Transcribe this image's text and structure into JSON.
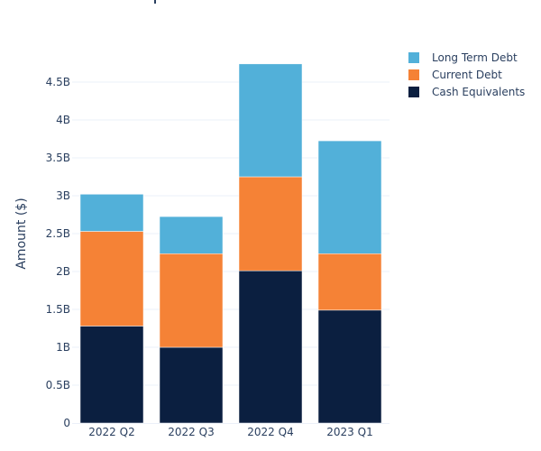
{
  "chart_data": {
    "type": "bar",
    "stacked": true,
    "title": "",
    "xlabel": "",
    "ylabel": "Amount ($)",
    "categories": [
      "2022 Q2",
      "2022 Q3",
      "2022 Q4",
      "2023 Q1"
    ],
    "ylim": [
      0,
      4.75
    ],
    "yticks": [
      0,
      0.5,
      1,
      1.5,
      2,
      2.5,
      3,
      3.5,
      4,
      4.5
    ],
    "ytick_labels": [
      "0",
      "0.5B",
      "1B",
      "1.5B",
      "2B",
      "2.5B",
      "3B",
      "3.5B",
      "4B",
      "4.5B"
    ],
    "units": "billions USD",
    "grid": true,
    "legend_position": "top-right",
    "series": [
      {
        "name": "Cash Equivalents",
        "color": "#0b1f40",
        "values": [
          1.28,
          1.0,
          2.01,
          1.49
        ]
      },
      {
        "name": "Current Debt",
        "color": "#f58236",
        "values": [
          1.25,
          1.235,
          1.24,
          0.745
        ]
      },
      {
        "name": "Long Term Debt",
        "color": "#52b0d9",
        "values": [
          0.49,
          0.49,
          1.49,
          1.49
        ]
      }
    ],
    "legend_order": [
      "Long Term Debt",
      "Current Debt",
      "Cash Equivalents"
    ]
  }
}
